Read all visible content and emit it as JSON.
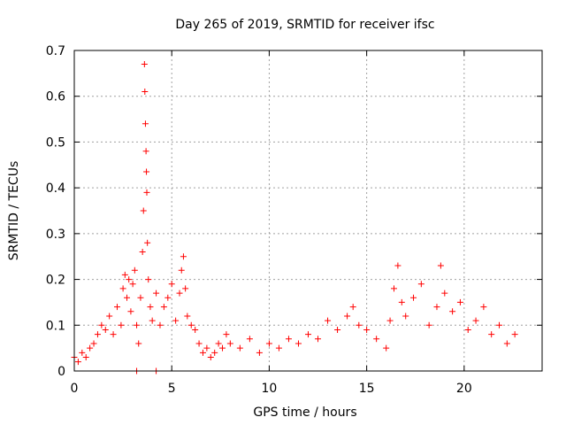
{
  "chart_data": {
    "type": "scatter",
    "title": "Day 265 of 2019, SRMTID for receiver ifsc",
    "xlabel": "GPS time / hours",
    "ylabel": "SRMTID / TECUs",
    "xlim": [
      0,
      24
    ],
    "ylim": [
      0,
      0.7
    ],
    "x_ticks": [
      0,
      5,
      10,
      15,
      20
    ],
    "x_tick_labels": [
      "0",
      "5",
      "10",
      "15",
      "20"
    ],
    "y_ticks": [
      0,
      0.1,
      0.2,
      0.3,
      0.4,
      0.5,
      0.6,
      0.7
    ],
    "y_tick_labels": [
      "0",
      "0.1",
      "0.2",
      "0.3",
      "0.4",
      "0.5",
      "0.6",
      "0.7"
    ],
    "grid": true,
    "marker": "plus",
    "color": "#ff0000",
    "series": [
      {
        "name": "SRMTID",
        "x": [
          0.0,
          0.2,
          0.4,
          0.6,
          0.8,
          1.0,
          1.2,
          1.4,
          1.6,
          1.8,
          2.0,
          2.2,
          2.4,
          2.5,
          2.6,
          2.7,
          2.8,
          2.9,
          3.0,
          3.1,
          3.2,
          3.3,
          3.4,
          3.5,
          3.55,
          3.6,
          3.62,
          3.65,
          3.68,
          3.7,
          3.72,
          3.75,
          3.8,
          3.9,
          4.0,
          4.2,
          4.4,
          4.6,
          4.8,
          5.0,
          5.2,
          5.4,
          5.5,
          5.6,
          5.7,
          5.8,
          6.0,
          6.2,
          6.4,
          6.6,
          6.8,
          7.0,
          7.2,
          7.4,
          7.6,
          7.8,
          8.0,
          8.5,
          9.0,
          9.5,
          10.0,
          10.5,
          11.0,
          11.5,
          12.0,
          12.5,
          13.0,
          13.5,
          14.0,
          14.3,
          14.6,
          15.0,
          15.5,
          16.0,
          16.2,
          16.4,
          16.6,
          16.8,
          17.0,
          17.4,
          17.8,
          18.2,
          18.6,
          18.8,
          19.0,
          19.4,
          19.8,
          20.2,
          20.6,
          21.0,
          21.4,
          21.8,
          22.2,
          22.6,
          3.2,
          4.2
        ],
        "y": [
          0.03,
          0.02,
          0.04,
          0.03,
          0.05,
          0.06,
          0.08,
          0.1,
          0.09,
          0.12,
          0.08,
          0.14,
          0.1,
          0.18,
          0.21,
          0.16,
          0.2,
          0.13,
          0.19,
          0.22,
          0.1,
          0.06,
          0.16,
          0.26,
          0.35,
          0.67,
          0.61,
          0.54,
          0.48,
          0.435,
          0.39,
          0.28,
          0.2,
          0.14,
          0.11,
          0.17,
          0.1,
          0.14,
          0.16,
          0.19,
          0.11,
          0.17,
          0.22,
          0.25,
          0.18,
          0.12,
          0.1,
          0.09,
          0.06,
          0.04,
          0.05,
          0.03,
          0.04,
          0.06,
          0.05,
          0.08,
          0.06,
          0.05,
          0.07,
          0.04,
          0.06,
          0.05,
          0.07,
          0.06,
          0.08,
          0.07,
          0.11,
          0.09,
          0.12,
          0.14,
          0.1,
          0.09,
          0.07,
          0.05,
          0.11,
          0.18,
          0.23,
          0.15,
          0.12,
          0.16,
          0.19,
          0.1,
          0.14,
          0.23,
          0.17,
          0.13,
          0.15,
          0.09,
          0.11,
          0.14,
          0.08,
          0.1,
          0.06,
          0.08,
          0.0,
          0.0
        ]
      }
    ]
  }
}
